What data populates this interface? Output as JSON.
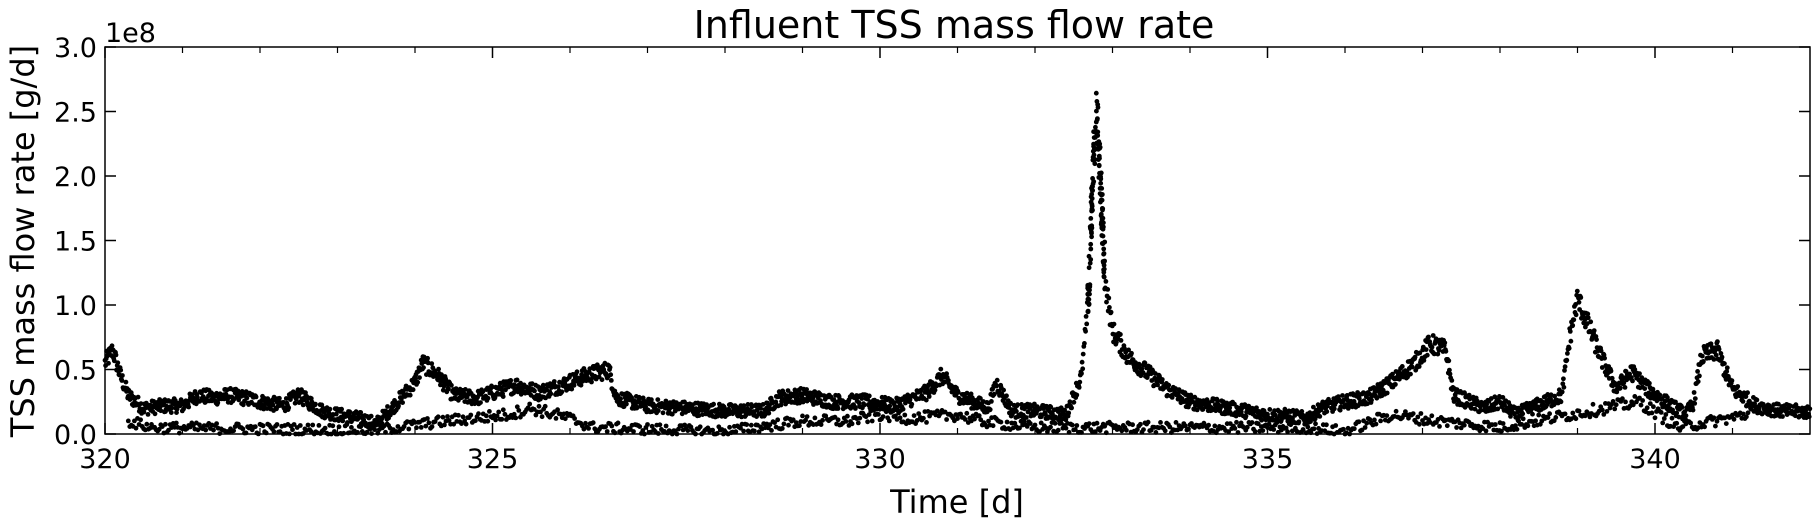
{
  "chart_data": {
    "type": "scatter",
    "title": "Influent TSS mass flow rate",
    "xlabel": "Time [d]",
    "ylabel": "TSS mass flow rate [g/d]",
    "y_offset_label": "1e8",
    "y_scale": 100000000,
    "xlim": [
      320,
      342
    ],
    "ylim": [
      0.0,
      3.0
    ],
    "x_ticks": [
      320,
      325,
      330,
      335,
      340
    ],
    "x_minor_ticks": [
      321,
      322,
      323,
      324,
      326,
      327,
      328,
      329,
      331,
      332,
      333,
      334,
      336,
      337,
      338,
      339,
      341
    ],
    "y_ticks": [
      0.0,
      0.5,
      1.0,
      1.5,
      2.0,
      2.5,
      3.0
    ],
    "grid": false,
    "marker_color": "#000000",
    "series": [
      {
        "values_unit": "1e8 g/d",
        "trend_main": [
          [
            320.0,
            0.55
          ],
          [
            320.1,
            0.65
          ],
          [
            320.2,
            0.45
          ],
          [
            320.3,
            0.3
          ],
          [
            320.5,
            0.2
          ],
          [
            320.8,
            0.22
          ],
          [
            321.0,
            0.22
          ],
          [
            321.2,
            0.3
          ],
          [
            321.4,
            0.28
          ],
          [
            321.6,
            0.3
          ],
          [
            321.8,
            0.28
          ],
          [
            322.0,
            0.25
          ],
          [
            322.3,
            0.22
          ],
          [
            322.5,
            0.3
          ],
          [
            322.8,
            0.18
          ],
          [
            323.0,
            0.15
          ],
          [
            323.3,
            0.12
          ],
          [
            323.5,
            0.08
          ],
          [
            323.7,
            0.2
          ],
          [
            324.0,
            0.4
          ],
          [
            324.1,
            0.55
          ],
          [
            324.3,
            0.45
          ],
          [
            324.5,
            0.3
          ],
          [
            324.8,
            0.28
          ],
          [
            325.0,
            0.32
          ],
          [
            325.3,
            0.38
          ],
          [
            325.6,
            0.32
          ],
          [
            325.9,
            0.38
          ],
          [
            326.2,
            0.45
          ],
          [
            326.5,
            0.5
          ],
          [
            326.6,
            0.28
          ],
          [
            327.0,
            0.22
          ],
          [
            327.5,
            0.2
          ],
          [
            328.0,
            0.18
          ],
          [
            328.5,
            0.18
          ],
          [
            328.7,
            0.28
          ],
          [
            329.0,
            0.3
          ],
          [
            329.4,
            0.25
          ],
          [
            329.8,
            0.25
          ],
          [
            330.2,
            0.22
          ],
          [
            330.6,
            0.32
          ],
          [
            330.8,
            0.45
          ],
          [
            331.0,
            0.3
          ],
          [
            331.4,
            0.2
          ],
          [
            331.5,
            0.4
          ],
          [
            331.7,
            0.18
          ],
          [
            332.0,
            0.18
          ],
          [
            332.4,
            0.15
          ],
          [
            332.5,
            0.3
          ],
          [
            332.6,
            0.45
          ],
          [
            332.7,
            1.1
          ],
          [
            332.75,
            2.0
          ],
          [
            332.8,
            2.4
          ],
          [
            332.85,
            1.8
          ],
          [
            332.9,
            1.2
          ],
          [
            333.0,
            0.8
          ],
          [
            333.2,
            0.6
          ],
          [
            333.4,
            0.5
          ],
          [
            333.7,
            0.35
          ],
          [
            334.0,
            0.25
          ],
          [
            334.5,
            0.2
          ],
          [
            335.0,
            0.15
          ],
          [
            335.3,
            0.14
          ],
          [
            335.5,
            0.12
          ],
          [
            335.7,
            0.2
          ],
          [
            336.0,
            0.25
          ],
          [
            336.3,
            0.28
          ],
          [
            336.6,
            0.4
          ],
          [
            336.9,
            0.55
          ],
          [
            337.1,
            0.7
          ],
          [
            337.3,
            0.65
          ],
          [
            337.4,
            0.3
          ],
          [
            337.6,
            0.25
          ],
          [
            337.8,
            0.2
          ],
          [
            338.0,
            0.25
          ],
          [
            338.2,
            0.15
          ],
          [
            338.4,
            0.2
          ],
          [
            338.6,
            0.25
          ],
          [
            338.8,
            0.3
          ],
          [
            338.9,
            0.75
          ],
          [
            339.0,
            1.05
          ],
          [
            339.1,
            0.9
          ],
          [
            339.3,
            0.6
          ],
          [
            339.5,
            0.35
          ],
          [
            339.7,
            0.48
          ],
          [
            339.9,
            0.35
          ],
          [
            340.2,
            0.22
          ],
          [
            340.4,
            0.15
          ],
          [
            340.5,
            0.25
          ],
          [
            340.6,
            0.6
          ],
          [
            340.8,
            0.65
          ],
          [
            341.0,
            0.35
          ],
          [
            341.3,
            0.22
          ],
          [
            341.6,
            0.18
          ],
          [
            342.0,
            0.17
          ]
        ],
        "trend_lower": [
          [
            320.3,
            0.1
          ],
          [
            320.6,
            0.05
          ],
          [
            323.5,
            0.03
          ],
          [
            324.4,
            0.1
          ],
          [
            325.2,
            0.15
          ],
          [
            325.5,
            0.2
          ],
          [
            326.0,
            0.12
          ],
          [
            326.3,
            0.05
          ],
          [
            328.0,
            0.02
          ],
          [
            329.0,
            0.1
          ],
          [
            329.6,
            0.1
          ],
          [
            330.0,
            0.15
          ],
          [
            330.4,
            0.12
          ],
          [
            331.0,
            0.15
          ],
          [
            331.3,
            0.1
          ],
          [
            332.0,
            0.05
          ],
          [
            334.0,
            0.05
          ],
          [
            334.8,
            0.05
          ],
          [
            335.5,
            0.05
          ],
          [
            336.0,
            0.02
          ],
          [
            336.6,
            0.15
          ],
          [
            337.2,
            0.1
          ],
          [
            338.0,
            0.05
          ],
          [
            339.8,
            0.25
          ],
          [
            340.3,
            0.05
          ],
          [
            341.2,
            0.15
          ]
        ]
      }
    ]
  }
}
